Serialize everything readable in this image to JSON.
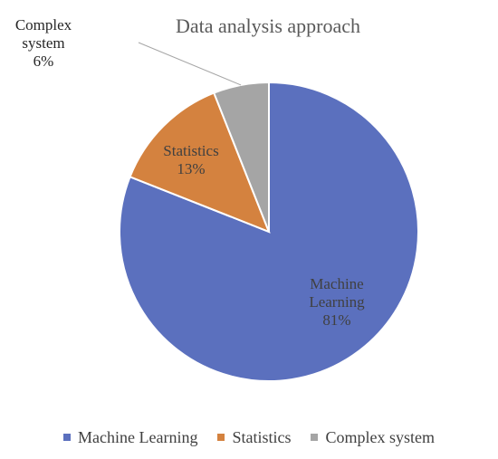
{
  "chart_data": {
    "type": "pie",
    "title": "Data analysis approach",
    "slices": [
      {
        "name": "Machine Learning",
        "value": 81,
        "label_lines": [
          "Machine",
          "Learning",
          "81%"
        ],
        "color": "#5b70be"
      },
      {
        "name": "Statistics",
        "value": 13,
        "label_lines": [
          "Statistics",
          "13%"
        ],
        "color": "#d4823f"
      },
      {
        "name": "Complex system",
        "value": 6,
        "label_lines": [
          "Complex",
          "system",
          "6%"
        ],
        "color": "#a5a5a5"
      }
    ],
    "legend": {
      "placement": "bottom",
      "entries": [
        "Machine Learning",
        "Statistics",
        "Complex system"
      ]
    }
  }
}
